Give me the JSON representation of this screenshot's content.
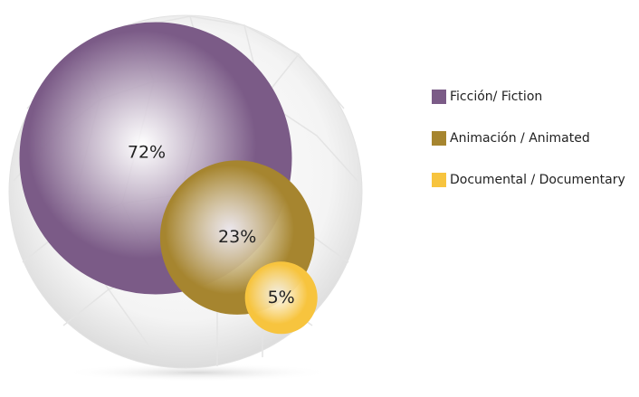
{
  "chart_data": {
    "type": "bubble",
    "categories": [
      "Ficción/ Fiction",
      "Animación / Animated",
      "Documental / Documentary"
    ],
    "values": [
      72,
      23,
      5
    ],
    "value_labels": [
      "72%",
      "23%",
      "5%"
    ],
    "colors": [
      "#7b5b87",
      "#a6852f",
      "#f7c43e"
    ]
  }
}
